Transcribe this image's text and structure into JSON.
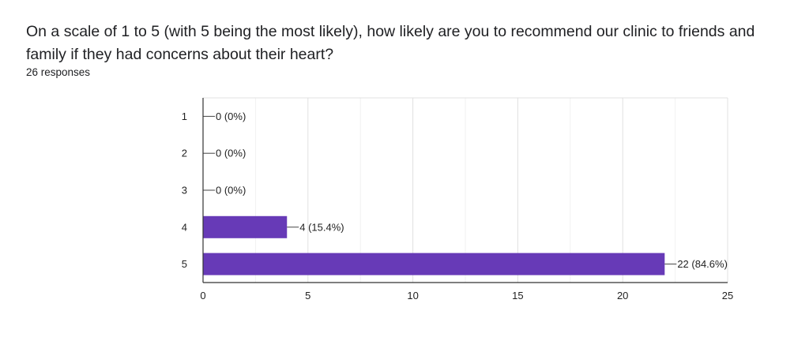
{
  "question": {
    "text": "On a scale of 1 to 5 (with 5 being the most likely), how likely are you to recommend our clinic to friends and family if they had concerns about their heart?",
    "responses_label": "26 responses"
  },
  "chart_data": {
    "type": "bar",
    "orientation": "horizontal",
    "categories": [
      "1",
      "2",
      "3",
      "4",
      "5"
    ],
    "values": [
      0,
      0,
      0,
      4,
      22
    ],
    "data_labels": [
      "0 (0%)",
      "0 (0%)",
      "0 (0%)",
      "4 (15.4%)",
      "22 (84.6%)"
    ],
    "xlim": [
      0,
      25
    ],
    "xticks": [
      0,
      5,
      10,
      15,
      20,
      25
    ],
    "grid": true,
    "colors": {
      "bar": "#673ab7",
      "grid": "#e0e0e0",
      "axis": "#333333"
    }
  }
}
